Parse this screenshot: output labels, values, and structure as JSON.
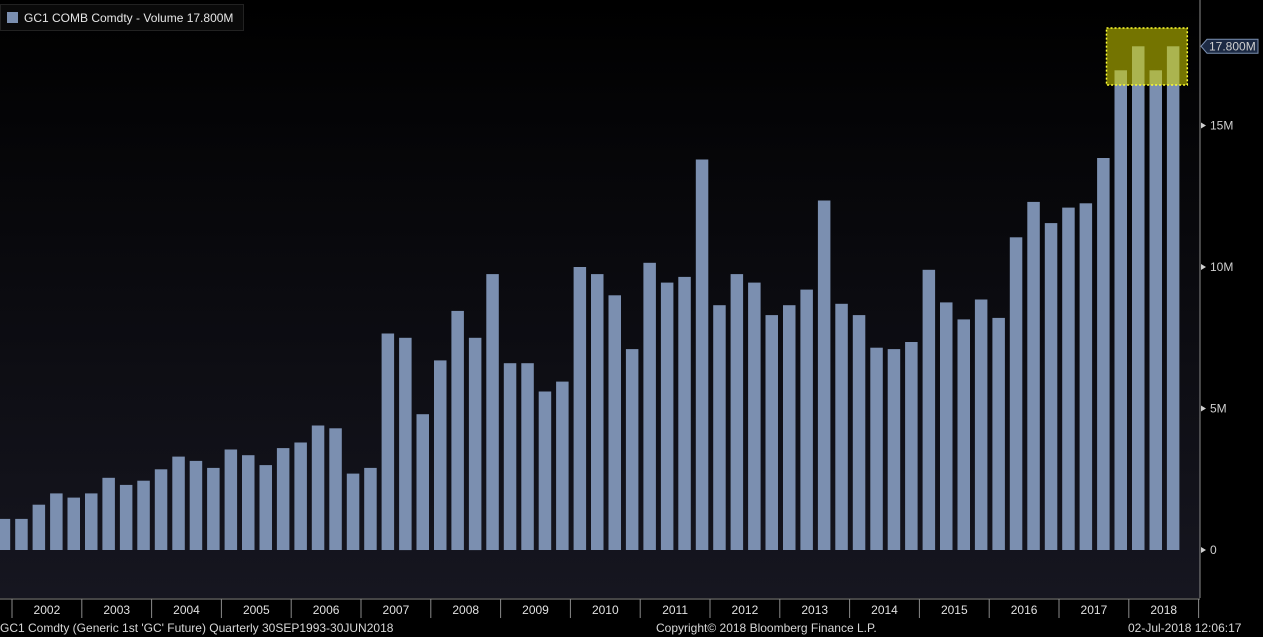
{
  "chart_data": {
    "type": "bar",
    "series": [
      {
        "name": "GC1 COMB Comdty - Volume 17.800M",
        "values": [
          1.1,
          1.1,
          1.6,
          2.0,
          1.85,
          2.0,
          2.55,
          2.3,
          2.45,
          2.85,
          3.3,
          3.15,
          2.9,
          3.55,
          3.35,
          3.0,
          3.6,
          3.8,
          4.4,
          4.3,
          2.7,
          2.9,
          7.65,
          7.5,
          4.8,
          6.7,
          8.45,
          7.5,
          9.75,
          6.6,
          6.6,
          5.6,
          5.95,
          10.0,
          9.75,
          9.0,
          7.1,
          10.15,
          9.45,
          9.65,
          13.8,
          8.65,
          9.75,
          9.45,
          8.3,
          8.65,
          9.2,
          12.35,
          8.7,
          8.3,
          7.15,
          7.1,
          7.35,
          9.9,
          8.75,
          8.15,
          8.85,
          8.2,
          11.05,
          12.3,
          11.55,
          12.1,
          12.25,
          13.85,
          16.95,
          17.8,
          16.95,
          17.8
        ]
      }
    ],
    "x_labels": [
      "2002",
      "2003",
      "2004",
      "2005",
      "2006",
      "2007",
      "2008",
      "2009",
      "2010",
      "2011",
      "2012",
      "2013",
      "2014",
      "2015",
      "2016",
      "2017",
      "2018"
    ],
    "y_ticks": [
      "0",
      "5M",
      "10M",
      "15M"
    ],
    "ylim": [
      0,
      19.5
    ],
    "last_value_label": "17.800M",
    "highlight": "last 4 bars",
    "bar_color": "#7b8fb0",
    "highlight_color": "#d4d400",
    "background_color": "#000000"
  },
  "legend": {
    "text": "GC1 COMB Comdty - Volume 17.800M"
  },
  "footer": {
    "left": "GC1 Comdty (Generic 1st 'GC' Future)  Quarterly 30SEP1993-30JUN2018",
    "center": "Copyright© 2018 Bloomberg Finance L.P.",
    "right": "02-Jul-2018 12:06:17"
  }
}
